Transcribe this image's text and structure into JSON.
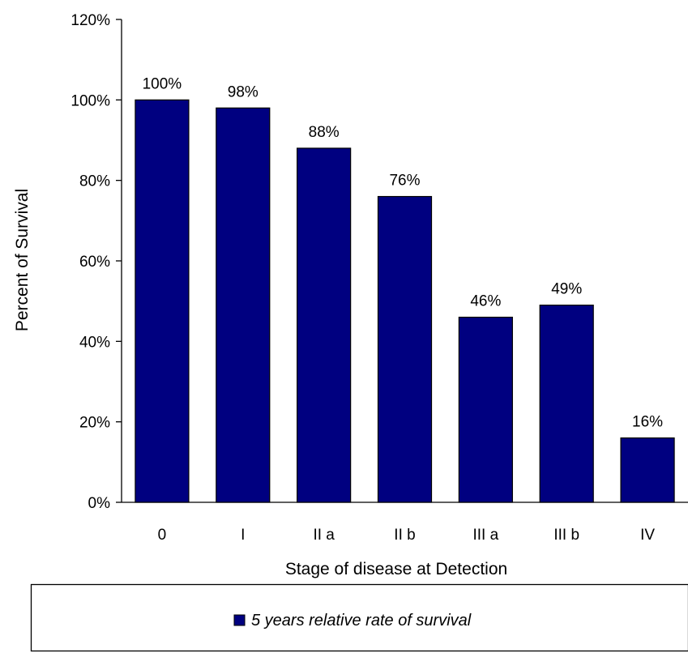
{
  "chart_data": {
    "type": "bar",
    "categories": [
      "0",
      "I",
      "II a",
      "II b",
      "III a",
      "III b",
      "IV"
    ],
    "series": [
      {
        "name": "5 years relative rate of survival",
        "values": [
          100,
          98,
          88,
          76,
          46,
          49,
          16
        ],
        "labels": [
          "100%",
          "98%",
          "88%",
          "76%",
          "46%",
          "49%",
          "16%"
        ],
        "color": "#000080"
      }
    ],
    "xlabel": "Stage of disease at Detection",
    "ylabel": "Percent of Survival",
    "ylim": [
      0,
      120
    ],
    "yticks": [
      0,
      20,
      40,
      60,
      80,
      100,
      120
    ],
    "ytick_labels": [
      "0%",
      "20%",
      "40%",
      "60%",
      "80%",
      "100%",
      "120%"
    ],
    "grid": false,
    "legend_position": "bottom"
  }
}
